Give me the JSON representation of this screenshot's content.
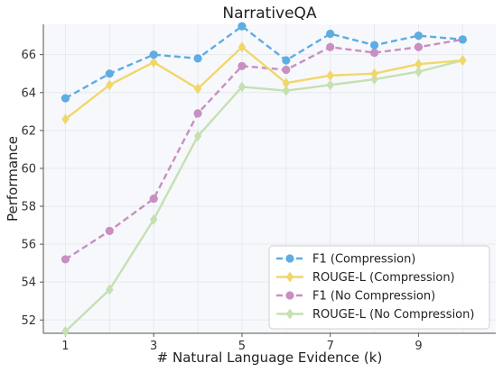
{
  "chart_data": {
    "type": "line",
    "title": "NarrativeQA",
    "xlabel": "# Natural Language Evidence (k)",
    "ylabel": "Performance",
    "x": [
      1,
      2,
      3,
      4,
      5,
      6,
      7,
      8,
      9,
      10
    ],
    "xticks": [
      1,
      3,
      5,
      7,
      9
    ],
    "yticks": [
      52,
      54,
      56,
      58,
      60,
      62,
      64,
      66
    ],
    "xlim": [
      0.5,
      10.75
    ],
    "ylim": [
      51.3,
      67.6
    ],
    "grid": true,
    "legend_position": "bottom-right",
    "series": [
      {
        "name": "F1 (Compression)",
        "color": "#5dade2",
        "dashed": true,
        "marker": "circle",
        "values": [
          63.7,
          65.0,
          66.0,
          65.8,
          67.5,
          65.7,
          67.1,
          66.5,
          67.0,
          66.8
        ]
      },
      {
        "name": "ROUGE-L (Compression)",
        "color": "#f1d76b",
        "dashed": false,
        "marker": "diamond",
        "values": [
          62.6,
          64.4,
          65.6,
          64.2,
          66.4,
          64.5,
          64.9,
          65.0,
          65.5,
          65.7
        ]
      },
      {
        "name": "F1 (No Compression)",
        "color": "#c98fc2",
        "dashed": true,
        "marker": "circle",
        "values": [
          55.2,
          56.7,
          58.4,
          62.9,
          65.4,
          65.2,
          66.4,
          66.1,
          66.4,
          66.8
        ]
      },
      {
        "name": "ROUGE-L (No Compression)",
        "color": "#c5e0b3",
        "dashed": false,
        "marker": "diamond",
        "values": [
          51.4,
          53.6,
          57.3,
          61.7,
          64.3,
          64.1,
          64.4,
          64.7,
          65.1,
          65.7
        ]
      }
    ]
  }
}
